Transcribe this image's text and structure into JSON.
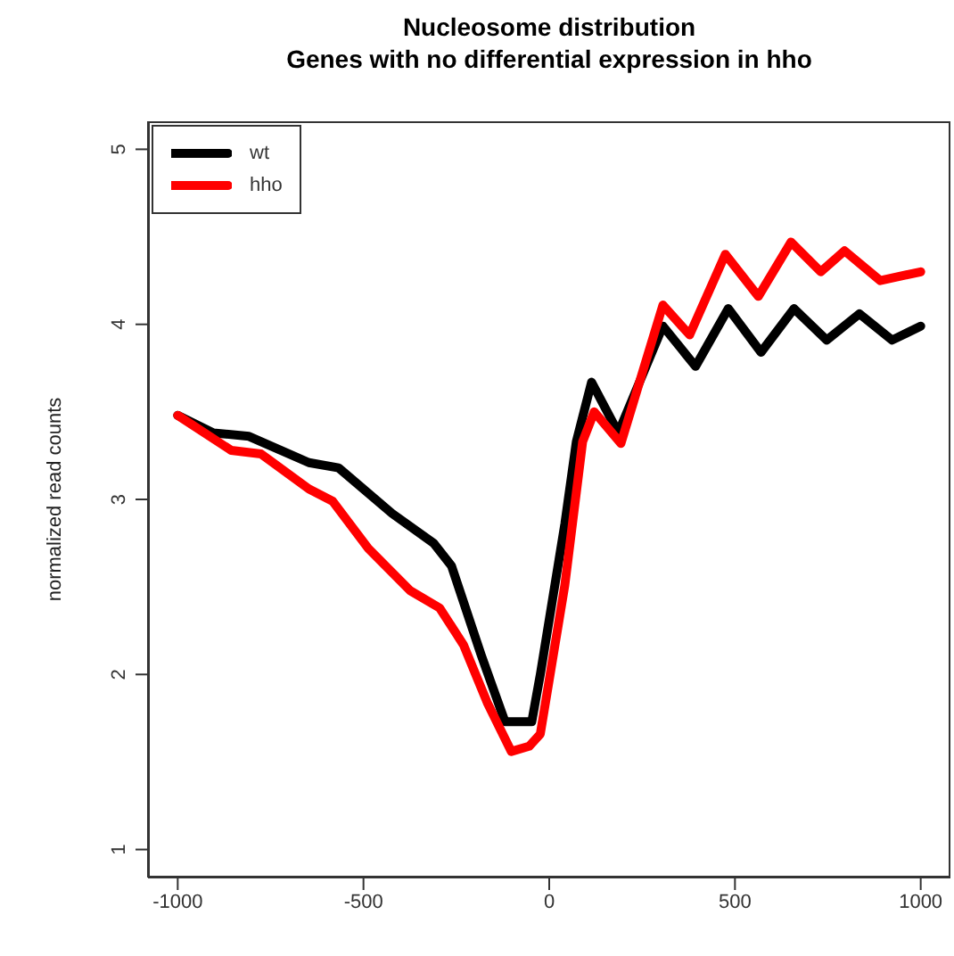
{
  "chart_data": {
    "type": "line",
    "title": "Nucleosome distribution",
    "subtitle": "Genes with no differential expression in hho",
    "ylabel": "normalized read counts",
    "xlim": [
      -1080,
      1080
    ],
    "xticks": [
      -1000,
      -500,
      0,
      500,
      1000
    ],
    "ylim": [
      0.84,
      5.16
    ],
    "yticks": [
      1,
      2,
      3,
      4,
      5
    ],
    "grid": false,
    "legend": "top left",
    "marker": "none",
    "line_style": "solid",
    "series": [
      {
        "name": "wt",
        "color": "#000000",
        "x": [
          -1000,
          -904,
          -808,
          -647,
          -567,
          -423,
          -311,
          -263,
          -183,
          -119,
          -47,
          -24,
          42,
          73,
          114,
          186,
          306,
          394,
          482,
          570,
          659,
          747,
          835,
          923,
          1000
        ],
        "values": [
          3.48,
          3.38,
          3.36,
          3.21,
          3.18,
          2.92,
          2.75,
          2.62,
          2.11,
          1.73,
          1.73,
          2.0,
          2.86,
          3.33,
          3.67,
          3.38,
          3.99,
          3.76,
          4.09,
          3.84,
          4.09,
          3.91,
          4.06,
          3.91,
          3.99
        ]
      },
      {
        "name": "hho",
        "color": "#ff0000",
        "x": [
          -1000,
          -856,
          -776,
          -647,
          -583,
          -487,
          -375,
          -295,
          -231,
          -167,
          -102,
          -54,
          -24,
          42,
          90,
          121,
          193,
          306,
          378,
          474,
          563,
          651,
          731,
          795,
          891,
          1000
        ],
        "values": [
          3.48,
          3.28,
          3.26,
          3.06,
          2.99,
          2.72,
          2.48,
          2.38,
          2.17,
          1.84,
          1.56,
          1.59,
          1.66,
          2.51,
          3.33,
          3.5,
          3.32,
          4.11,
          3.94,
          4.4,
          4.16,
          4.47,
          4.3,
          4.42,
          4.25,
          4.3
        ]
      }
    ]
  }
}
